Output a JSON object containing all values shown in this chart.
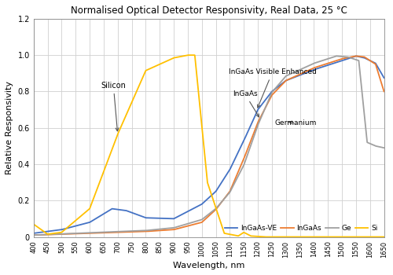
{
  "title": "Normalised Optical Detector Responsivity, Real Data, 25 °C",
  "xlabel": "Wavelength, nm",
  "ylabel": "Relative Responsivity",
  "xlim": [
    400,
    1650
  ],
  "ylim": [
    0,
    1.2
  ],
  "yticks": [
    0,
    0.2,
    0.4,
    0.6,
    0.8,
    1.0,
    1.2
  ],
  "xticks": [
    400,
    450,
    500,
    550,
    600,
    650,
    700,
    750,
    800,
    850,
    900,
    950,
    1000,
    1050,
    1100,
    1150,
    1200,
    1250,
    1300,
    1350,
    1400,
    1450,
    1500,
    1550,
    1600,
    1650
  ],
  "colors": {
    "InGaAs_VE": "#4472C4",
    "InGaAs": "#ED7D31",
    "Ge": "#A0A0A0",
    "Si": "#FFC000"
  },
  "background_color": "#FFFFFF",
  "grid_color": "#D0D0D0"
}
